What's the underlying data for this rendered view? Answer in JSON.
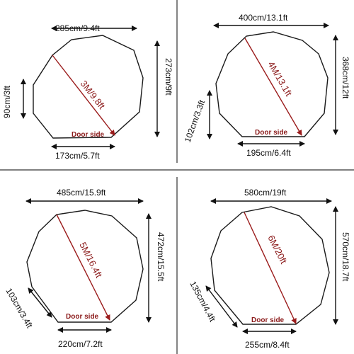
{
  "colors": {
    "diagonal": "#9b1c1c",
    "outline": "#1a1a1a",
    "text": "#111111"
  },
  "icons": [
    "arrow-head-icon"
  ],
  "panels": [
    {
      "top": "285cm/9.4ft",
      "right": "273cm/9ft",
      "left": "90cm/3ft",
      "bottom": "173cm/5.7ft",
      "diagonal": "3M/9.8ft",
      "door": "Door side"
    },
    {
      "top": "400cm/13.1ft",
      "right": "368cm/12ft",
      "left": "102cm/3.3ft",
      "bottom": "195cm/6.4ft",
      "diagonal": "4M/13.1ft",
      "door": "Door side"
    },
    {
      "top": "485cm/15.9ft",
      "right": "472cm/15.5ft",
      "left": "103cm/3.4ft",
      "bottom": "220cm/7.2ft",
      "diagonal": "5M/16.4ft",
      "door": "Door side"
    },
    {
      "top": "580cm/19ft",
      "right": "570cm/18.7ft",
      "left": "135cm/4.4ft",
      "bottom": "255cm/8.4ft",
      "diagonal": "6M/20ft",
      "door": "Door side"
    }
  ]
}
